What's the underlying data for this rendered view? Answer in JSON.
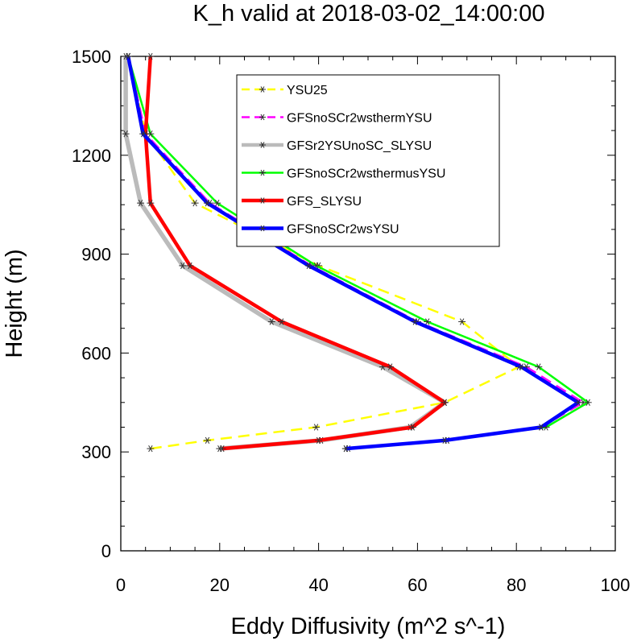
{
  "chart_data": {
    "type": "line",
    "title": "K_h valid at 2018-03-02_14:00:00",
    "xlabel": "Eddy Diffusivity (m^2 s^-1)",
    "ylabel": "Height (m)",
    "xlim": [
      0,
      100
    ],
    "ylim": [
      0,
      1500
    ],
    "xticks": [
      0,
      20,
      40,
      60,
      80,
      100
    ],
    "yticks": [
      0,
      300,
      600,
      900,
      1200,
      1500
    ],
    "x_tick_labels": [
      "0",
      "20",
      "40",
      "60",
      "80",
      "100"
    ],
    "y_tick_labels": [
      "0",
      "300",
      "600",
      "900",
      "1200",
      "1500"
    ],
    "grid": false,
    "legend_position": "top-right inside",
    "series": [
      {
        "name": "YSU25",
        "color": "#ffff00",
        "dash": "dashed",
        "points": [
          [
            6.0,
            310
          ],
          [
            17.5,
            335
          ],
          [
            39.5,
            375
          ],
          [
            65.5,
            450
          ],
          [
            80.5,
            558
          ],
          [
            69.0,
            695
          ],
          [
            40.0,
            865
          ],
          [
            15.0,
            1055
          ],
          [
            5.0,
            1265
          ],
          [
            1.5,
            1500
          ]
        ]
      },
      {
        "name": "GFSnoSCr2wsthermYSU",
        "color": "#ff00ff",
        "dash": "dashed",
        "points": [
          [
            45.5,
            310
          ],
          [
            66.0,
            335
          ],
          [
            85.0,
            375
          ],
          [
            93.5,
            450
          ],
          [
            82.0,
            558
          ],
          [
            60.0,
            695
          ],
          [
            38.5,
            865
          ],
          [
            18.0,
            1055
          ],
          [
            5.0,
            1265
          ],
          [
            1.5,
            1500
          ]
        ]
      },
      {
        "name": "GFSr2YSUnoSC_SLYSU",
        "color": "#bbbbbb",
        "dash": "solid",
        "points": [
          [
            20.0,
            310
          ],
          [
            40.5,
            335
          ],
          [
            58.5,
            375
          ],
          [
            65.5,
            450
          ],
          [
            53.0,
            558
          ],
          [
            30.5,
            695
          ],
          [
            12.5,
            865
          ],
          [
            4.0,
            1055
          ],
          [
            1.0,
            1265
          ],
          [
            1.0,
            1500
          ]
        ]
      },
      {
        "name": "GFSnoSCr2wsthermusYSU",
        "color": "#00ff00",
        "dash": "solid",
        "points": [
          [
            46.0,
            310
          ],
          [
            66.0,
            335
          ],
          [
            86.0,
            375
          ],
          [
            94.5,
            450
          ],
          [
            84.5,
            558
          ],
          [
            62.0,
            695
          ],
          [
            39.5,
            865
          ],
          [
            19.5,
            1055
          ],
          [
            6.0,
            1265
          ],
          [
            1.5,
            1500
          ]
        ]
      },
      {
        "name": "GFS_SLYSU",
        "color": "#ff0000",
        "dash": "solid",
        "points": [
          [
            20.5,
            310
          ],
          [
            40.0,
            335
          ],
          [
            59.0,
            375
          ],
          [
            65.5,
            450
          ],
          [
            54.5,
            558
          ],
          [
            32.5,
            695
          ],
          [
            14.0,
            865
          ],
          [
            6.0,
            1055
          ],
          [
            5.0,
            1265
          ],
          [
            6.0,
            1500
          ]
        ]
      },
      {
        "name": "GFSnoSCr2wsYSU",
        "color": "#0000ff",
        "dash": "solid",
        "points": [
          [
            45.5,
            310
          ],
          [
            65.5,
            335
          ],
          [
            85.0,
            375
          ],
          [
            92.5,
            450
          ],
          [
            81.0,
            558
          ],
          [
            59.5,
            695
          ],
          [
            38.0,
            865
          ],
          [
            17.5,
            1055
          ],
          [
            4.5,
            1265
          ],
          [
            1.5,
            1500
          ]
        ]
      }
    ]
  }
}
